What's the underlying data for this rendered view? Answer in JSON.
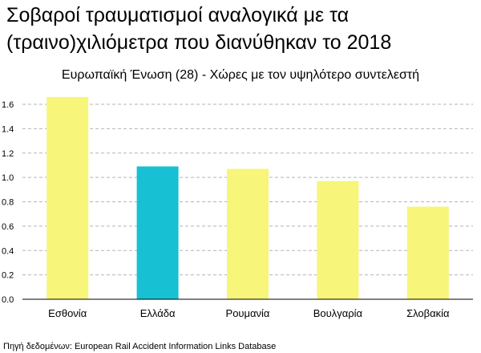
{
  "chart_data": {
    "type": "bar",
    "title": "Σοβαροί τραυματισμοί αναλογικά με τα (τραινο)χιλιόμετρα που διανύθηκαν το 2018",
    "subtitle": "Ευρωπαϊκή Ένωση (28) - Χώρες με τον υψηλότερο συντελεστή",
    "categories": [
      "Εσθονία",
      "Ελλάδα",
      "Ρουμανία",
      "Βουλγαρία",
      "Σλοβακία"
    ],
    "values": [
      1.66,
      1.09,
      1.07,
      0.97,
      0.76
    ],
    "colors": [
      "#f7f57a",
      "#17c0d2",
      "#f7f57a",
      "#f7f57a",
      "#f7f57a"
    ],
    "yticks": [
      "0.0",
      "0.2",
      "0.4",
      "0.6",
      "0.8",
      "1.0",
      "1.2",
      "1.4",
      "1.6"
    ],
    "ylim": [
      0,
      1.75
    ],
    "grid": true,
    "xlabel": "",
    "ylabel": ""
  },
  "source": "Πηγή δεδομένων: European Rail Accident Information Links Database"
}
